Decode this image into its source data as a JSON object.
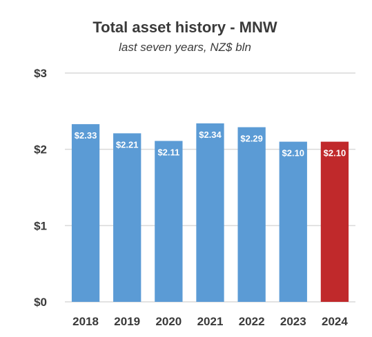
{
  "chart_data": {
    "type": "bar",
    "title": "Total asset history - MNW",
    "subtitle": "last seven years, NZ$ bln",
    "categories": [
      "2018",
      "2019",
      "2020",
      "2021",
      "2022",
      "2023",
      "2024"
    ],
    "values": [
      2.33,
      2.21,
      2.11,
      2.34,
      2.29,
      2.1,
      2.1
    ],
    "data_labels": [
      "$2.33",
      "$2.21",
      "$2.11",
      "$2.34",
      "$2.29",
      "$2.10",
      "$2.10"
    ],
    "bar_colors": [
      "#5b9bd5",
      "#5b9bd5",
      "#5b9bd5",
      "#5b9bd5",
      "#5b9bd5",
      "#5b9bd5",
      "#c0292b"
    ],
    "ylim": [
      0,
      3
    ],
    "yticks": [
      0,
      1,
      2,
      3
    ],
    "ytick_labels": [
      "$0",
      "$1",
      "$2",
      "$3"
    ],
    "grid": true,
    "xlabel": "",
    "ylabel": ""
  }
}
